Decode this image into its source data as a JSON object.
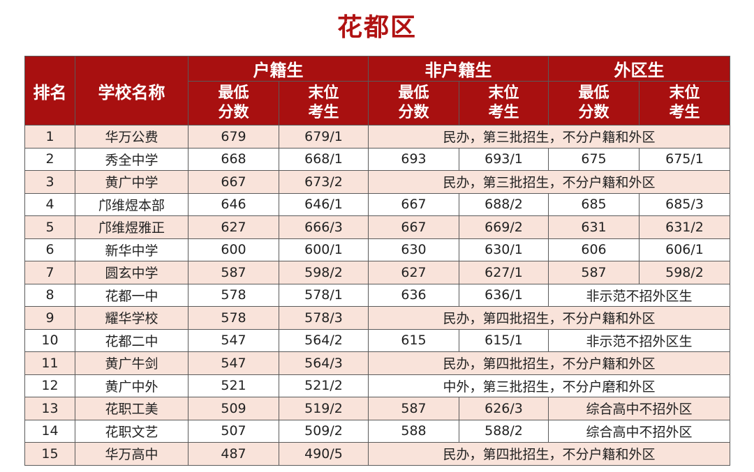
{
  "title": "花都区",
  "header": {
    "rank": "排名",
    "school": "学校名称",
    "groups": [
      "户籍生",
      "非户籍生",
      "外区生"
    ],
    "min_score_line1": "最低",
    "min_score_line2": "分数",
    "last_line1": "末位",
    "last_line2": "考生"
  },
  "rows": [
    {
      "rank": "1",
      "school": "华万公费",
      "c": [
        "679",
        "679/1"
      ],
      "note": "民办，第三批招生，不分户籍和外区"
    },
    {
      "rank": "2",
      "school": "秀全中学",
      "c": [
        "668",
        "668/1",
        "693",
        "693/1",
        "675",
        "675/1"
      ]
    },
    {
      "rank": "3",
      "school": "黄广中学",
      "c": [
        "667",
        "673/2"
      ],
      "note": "民办，第三批招生，不分户籍和外区"
    },
    {
      "rank": "4",
      "school": "邝维煜本部",
      "c": [
        "646",
        "646/1",
        "667",
        "688/2",
        "685",
        "685/3"
      ]
    },
    {
      "rank": "5",
      "school": "邝维煜雅正",
      "c": [
        "627",
        "666/3",
        "667",
        "669/2",
        "631",
        "631/2"
      ]
    },
    {
      "rank": "6",
      "school": "新华中学",
      "c": [
        "600",
        "600/1",
        "630",
        "630/1",
        "606",
        "606/1"
      ]
    },
    {
      "rank": "7",
      "school": "圆玄中学",
      "c": [
        "587",
        "598/2",
        "627",
        "627/1",
        "587",
        "598/2"
      ]
    },
    {
      "rank": "8",
      "school": "花都一中",
      "c": [
        "578",
        "578/1",
        "636",
        "636/1"
      ],
      "note2": "非示范不招外区生"
    },
    {
      "rank": "9",
      "school": "耀华学校",
      "c": [
        "578",
        "578/3"
      ],
      "note": "民办，第四批招生，不分户籍和外区"
    },
    {
      "rank": "10",
      "school": "花都二中",
      "c": [
        "547",
        "564/2",
        "615",
        "615/1"
      ],
      "note2": "非示范不招外区生"
    },
    {
      "rank": "11",
      "school": "黄广牛剑",
      "c": [
        "547",
        "564/3"
      ],
      "note": "民办，第四批招生，不分户籍和外区"
    },
    {
      "rank": "12",
      "school": "黄广中外",
      "c": [
        "521",
        "521/2"
      ],
      "note": "中外，第三批招生，不分户磨和外区"
    },
    {
      "rank": "13",
      "school": "花职工美",
      "c": [
        "509",
        "519/2",
        "587",
        "626/3"
      ],
      "note2": "综合高中不招外区"
    },
    {
      "rank": "14",
      "school": "花职文艺",
      "c": [
        "507",
        "509/2",
        "588",
        "588/2"
      ],
      "note2": "综合高中不招外区"
    },
    {
      "rank": "15",
      "school": "华万高中",
      "c": [
        "487",
        "490/5"
      ],
      "note": "民办，第四批招生，不分户籍和外区"
    }
  ]
}
